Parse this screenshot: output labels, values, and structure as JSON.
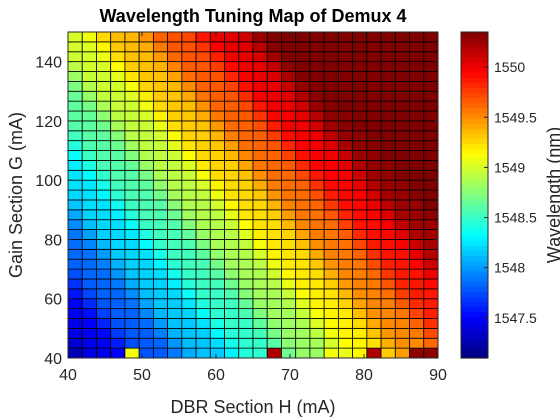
{
  "chart_data": {
    "type": "heatmap",
    "title": "Wavelength Tuning Map of Demux 4",
    "xlabel": "DBR Section H (mA)",
    "ylabel": "Gain Section G (mA)",
    "colorbar_label": "Wavelength (nm)",
    "colormap": "jet",
    "xlim": [
      40,
      90
    ],
    "ylim": [
      40,
      150
    ],
    "clim": [
      1547.1,
      1550.35
    ],
    "x_ticks": [
      40,
      50,
      60,
      70,
      80,
      90
    ],
    "y_ticks": [
      40,
      60,
      80,
      100,
      120,
      140
    ],
    "colorbar_ticks": [
      1547.5,
      1548,
      1548.5,
      1549,
      1549.5,
      1550
    ],
    "grid_nx": 26,
    "grid_ny": 33,
    "value_model": {
      "description": "approximate wavelength surface read from cell colors",
      "base": 1547.2,
      "x_coef": 0.048,
      "y_coef": 0.0165,
      "x_origin": 40,
      "y_origin": 40,
      "min": 1547.1,
      "max": 1550.35
    },
    "bottom_row_anomalies": [
      {
        "x": 48.0,
        "value": 1549.1
      },
      {
        "x": 67.0,
        "value": 1550.2
      },
      {
        "x": 75.0,
        "value": 1549.1
      },
      {
        "x": 81.0,
        "value": 1550.2
      },
      {
        "x": 87.0,
        "value": 1550.3
      },
      {
        "x": 89.0,
        "value": 1550.3
      }
    ]
  }
}
